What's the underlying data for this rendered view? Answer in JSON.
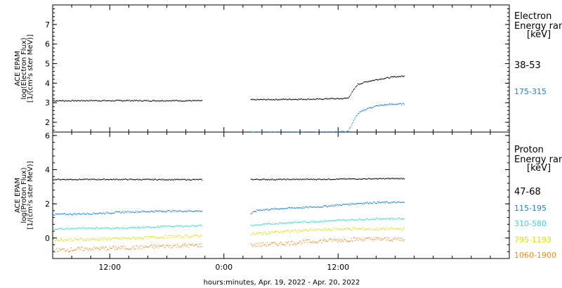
{
  "footer": {
    "xlabel": "hours:minutes, Apr. 19, 2022 - Apr. 20, 2022"
  },
  "x_axis": {
    "range_hours": [
      0,
      48
    ],
    "ticks": [
      {
        "label": "12:00",
        "hours": 6
      },
      {
        "label": "0:00",
        "hours": 18
      },
      {
        "label": "12:00",
        "hours": 30
      }
    ],
    "hours_note_offset_from": "Apr. 19, 2022 06:00"
  },
  "panels": [
    {
      "id": "electron",
      "ylabel_lines": [
        "ACE EPAM",
        "log(Electron Flux)",
        "[1/(cm²s ster MeV)]"
      ],
      "legend_title_lines": [
        "Electron",
        "Energy range",
        "[keV]"
      ],
      "ylim": [
        1.5,
        8
      ],
      "yticks": [
        2,
        3,
        4,
        5,
        6,
        7
      ],
      "series": [
        {
          "name": "38-53",
          "color": "#000000",
          "noise": 0.03
        },
        {
          "name": "175-315",
          "color": "#1a7fd6",
          "noise": 0.04
        }
      ]
    },
    {
      "id": "proton",
      "ylabel_lines": [
        "ACE EPAM",
        "log(Proton Flux)",
        "[1/(cm²s ster MeV)]"
      ],
      "legend_title_lines": [
        "Proton",
        "Energy range",
        "[keV]"
      ],
      "ylim": [
        -1.2,
        6.2
      ],
      "yticks": [
        0,
        2,
        4,
        6
      ],
      "series": [
        {
          "name": "47-68",
          "color": "#000000",
          "noise": 0.03
        },
        {
          "name": "115-195",
          "color": "#1a7fd6",
          "noise": 0.05
        },
        {
          "name": "310-580",
          "color": "#35d6c8",
          "noise": 0.05
        },
        {
          "name": "795-1193",
          "color": "#d8e000",
          "noise": 0.08
        },
        {
          "name": "1060-1900",
          "color": "#ef8a1f",
          "noise": 0.12
        }
      ]
    }
  ],
  "chart_data": [
    {
      "type": "scatter",
      "panel": "electron",
      "ylabel": "ACE EPAM log(Electron Flux) [1/(cm²s ster MeV)]",
      "xlabel": "hours:minutes, Apr. 19, 2022 - Apr. 20, 2022",
      "ylim": [
        1.5,
        8
      ],
      "x_ticks": [
        "12:00",
        "0:00",
        "12:00"
      ],
      "legend_title": "Electron Energy range [keV]",
      "series": [
        {
          "name": "38-53",
          "x_hours": [
            0,
            2,
            4,
            6,
            8,
            10,
            12,
            14,
            15.7,
            20.8,
            22,
            24,
            26,
            27,
            28,
            29,
            30,
            31,
            32,
            33,
            34,
            35,
            36,
            37
          ],
          "y": [
            3.12,
            3.12,
            3.13,
            3.12,
            3.13,
            3.12,
            3.13,
            3.12,
            3.12,
            3.17,
            3.18,
            3.19,
            3.2,
            3.2,
            3.2,
            3.23,
            3.22,
            3.25,
            3.95,
            4.1,
            4.2,
            4.28,
            4.35,
            4.38
          ]
        },
        {
          "name": "175-315",
          "x_hours": [
            0,
            2,
            4,
            6,
            8,
            10,
            12,
            14,
            15.7,
            20.8,
            22,
            24,
            26,
            27,
            28,
            29,
            30,
            31,
            32,
            33,
            34,
            35,
            36,
            37
          ],
          "y": [
            1.45,
            1.45,
            1.45,
            1.45,
            1.45,
            1.45,
            1.45,
            1.45,
            1.45,
            1.55,
            1.5,
            1.48,
            1.48,
            1.48,
            1.5,
            1.5,
            1.52,
            1.55,
            2.45,
            2.72,
            2.85,
            2.92,
            2.95,
            2.95
          ]
        }
      ]
    },
    {
      "type": "scatter",
      "panel": "proton",
      "ylabel": "ACE EPAM log(Proton Flux) [1/(cm²s ster MeV)]",
      "xlabel": "hours:minutes, Apr. 19, 2022 - Apr. 20, 2022",
      "ylim": [
        -1.2,
        6.2
      ],
      "x_ticks": [
        "12:00",
        "0:00",
        "12:00"
      ],
      "legend_title": "Proton Energy range [keV]",
      "series": [
        {
          "name": "47-68",
          "x_hours": [
            0,
            4,
            8,
            12,
            15.7,
            20.8,
            24,
            28,
            32,
            36,
            37
          ],
          "y": [
            3.45,
            3.45,
            3.45,
            3.44,
            3.44,
            3.45,
            3.45,
            3.46,
            3.48,
            3.5,
            3.5
          ]
        },
        {
          "name": "115-195",
          "x_hours": [
            0,
            4,
            8,
            12,
            15.7,
            20.8,
            21.5,
            24,
            28,
            30,
            32,
            34,
            37
          ],
          "y": [
            1.4,
            1.45,
            1.55,
            1.6,
            1.6,
            1.45,
            1.65,
            1.75,
            1.85,
            1.95,
            2.05,
            2.1,
            2.1
          ]
        },
        {
          "name": "310-580",
          "x_hours": [
            0,
            4,
            8,
            12,
            15.7,
            20.8,
            24,
            28,
            30,
            32,
            34,
            37
          ],
          "y": [
            0.55,
            0.6,
            0.6,
            0.7,
            0.75,
            0.75,
            0.9,
            1.0,
            1.05,
            1.1,
            1.15,
            1.15
          ]
        },
        {
          "name": "795-1193",
          "x_hours": [
            0,
            4,
            8,
            12,
            15.7,
            20.8,
            24,
            28,
            30,
            32,
            34,
            37
          ],
          "y": [
            -0.1,
            -0.05,
            0.0,
            0.1,
            0.15,
            0.25,
            0.4,
            0.5,
            0.55,
            0.55,
            0.55,
            0.55
          ]
        },
        {
          "name": "1060-1900",
          "x_hours": [
            0,
            4,
            8,
            12,
            15.7,
            20.8,
            24,
            28,
            30,
            32,
            34,
            37
          ],
          "y": [
            -0.7,
            -0.6,
            -0.55,
            -0.45,
            -0.4,
            -0.4,
            -0.3,
            -0.15,
            -0.1,
            -0.05,
            -0.05,
            -0.05
          ]
        }
      ]
    }
  ]
}
